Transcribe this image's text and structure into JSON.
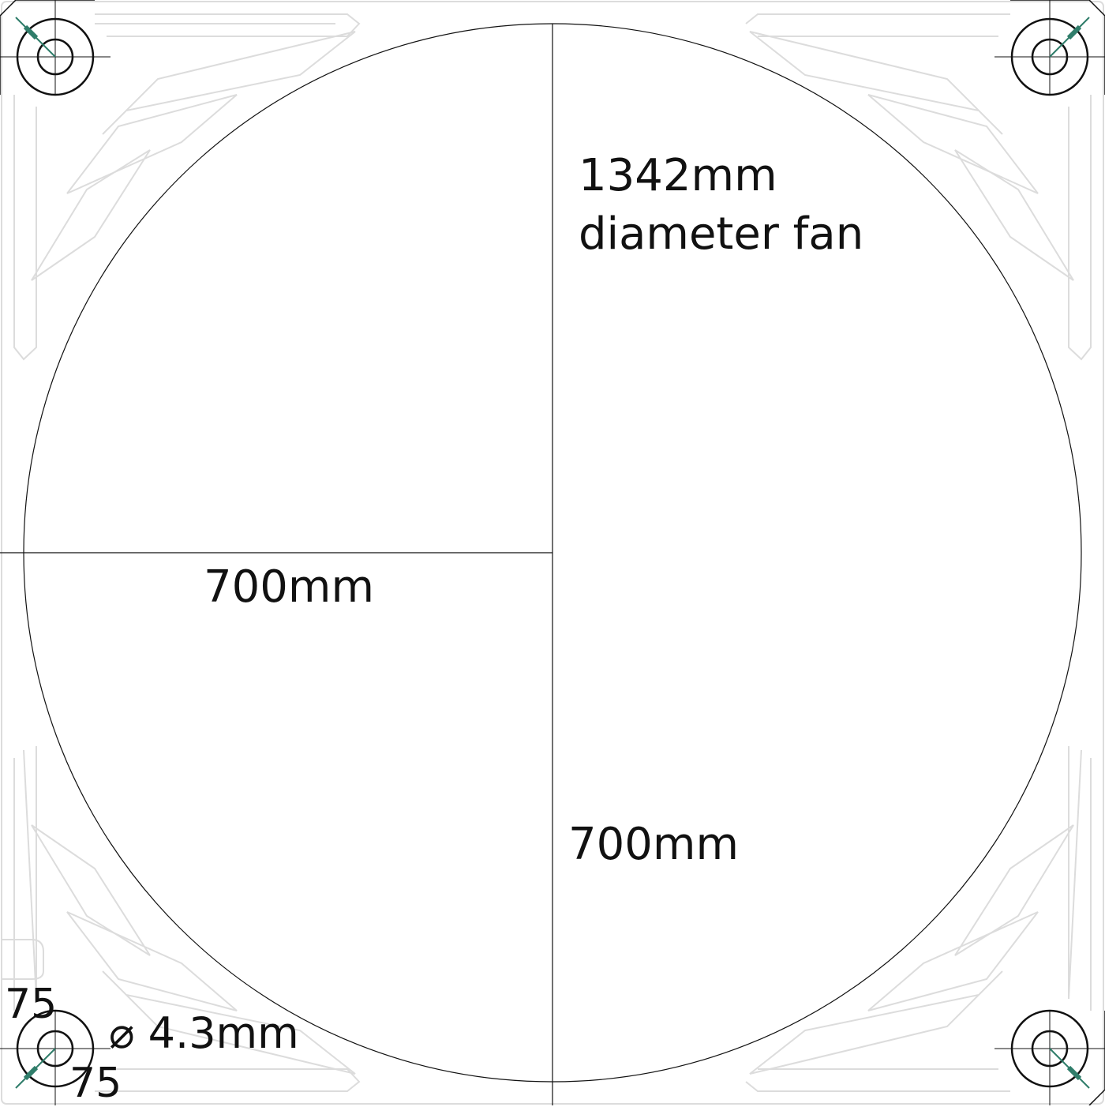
{
  "labels": {
    "fan_size": "1342mm",
    "fan_size_suffix": "diameter fan",
    "radius_horizontal": "700mm",
    "radius_vertical": "700mm",
    "hole_spacing_vertical": "75",
    "hole_spacing_horizontal": "75",
    "hole_diameter": "⌀ 4.3mm"
  },
  "colors": {
    "line": "#111111",
    "faint_outline": "#dcdcdc",
    "accent": "#2f7d6a",
    "background": "#ffffff"
  }
}
